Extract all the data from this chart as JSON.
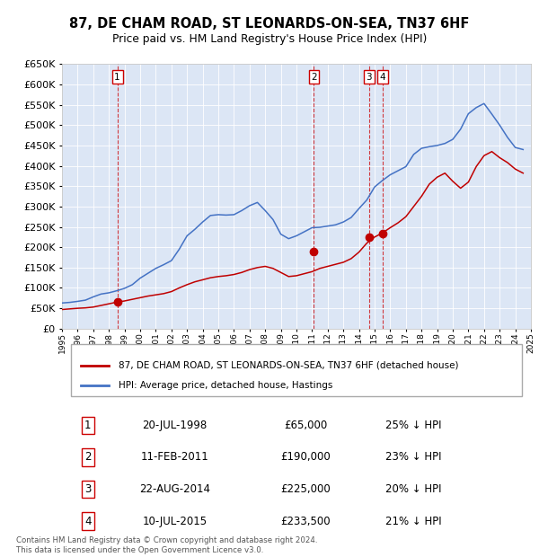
{
  "title": "87, DE CHAM ROAD, ST LEONARDS-ON-SEA, TN37 6HF",
  "subtitle": "Price paid vs. HM Land Registry's House Price Index (HPI)",
  "ylim": [
    0,
    650000
  ],
  "yticks": [
    0,
    50000,
    100000,
    150000,
    200000,
    250000,
    300000,
    350000,
    400000,
    450000,
    500000,
    550000,
    600000,
    650000
  ],
  "background_color": "#dce6f5",
  "hpi_color": "#4472c4",
  "price_color": "#c00000",
  "legend_label_price": "87, DE CHAM ROAD, ST LEONARDS-ON-SEA, TN37 6HF (detached house)",
  "legend_label_hpi": "HPI: Average price, detached house, Hastings",
  "footer": "Contains HM Land Registry data © Crown copyright and database right 2024.\nThis data is licensed under the Open Government Licence v3.0.",
  "transactions": [
    {
      "label": "1",
      "date": "20-JUL-1998",
      "price": 65000,
      "pct": "25% ↓ HPI",
      "x": 1998.54
    },
    {
      "label": "2",
      "date": "11-FEB-2011",
      "price": 190000,
      "pct": "23% ↓ HPI",
      "x": 2011.12
    },
    {
      "label": "3",
      "date": "22-AUG-2014",
      "price": 225000,
      "pct": "20% ↓ HPI",
      "x": 2014.64
    },
    {
      "label": "4",
      "date": "10-JUL-2015",
      "price": 233500,
      "pct": "21% ↓ HPI",
      "x": 2015.53
    }
  ],
  "hpi_years": [
    1995.0,
    1995.5,
    1996.0,
    1996.5,
    1997.0,
    1997.5,
    1998.0,
    1998.5,
    1999.0,
    1999.5,
    2000.0,
    2000.5,
    2001.0,
    2001.5,
    2002.0,
    2002.5,
    2003.0,
    2003.5,
    2004.0,
    2004.5,
    2005.0,
    2005.5,
    2006.0,
    2006.5,
    2007.0,
    2007.5,
    2008.0,
    2008.5,
    2009.0,
    2009.5,
    2010.0,
    2010.5,
    2011.0,
    2011.5,
    2012.0,
    2012.5,
    2013.0,
    2013.5,
    2014.0,
    2014.5,
    2015.0,
    2015.5,
    2016.0,
    2016.5,
    2017.0,
    2017.5,
    2018.0,
    2018.5,
    2019.0,
    2019.5,
    2020.0,
    2020.5,
    2021.0,
    2021.5,
    2022.0,
    2022.5,
    2023.0,
    2023.5,
    2024.0,
    2024.5
  ],
  "hpi_values": [
    63000,
    64500,
    67000,
    70000,
    78000,
    85000,
    88000,
    93000,
    99000,
    108000,
    124000,
    136000,
    148000,
    157000,
    167000,
    195000,
    228000,
    244000,
    262000,
    278000,
    280000,
    279000,
    280000,
    290000,
    302000,
    310000,
    290000,
    268000,
    232000,
    221000,
    228000,
    238000,
    248000,
    249000,
    252000,
    255000,
    262000,
    273000,
    295000,
    316000,
    348000,
    364000,
    378000,
    388000,
    398000,
    428000,
    443000,
    447000,
    450000,
    455000,
    465000,
    490000,
    528000,
    543000,
    553000,
    527000,
    500000,
    470000,
    445000,
    440000
  ],
  "price_years": [
    1995.0,
    1995.5,
    1996.0,
    1996.5,
    1997.0,
    1997.5,
    1998.0,
    1998.5,
    1999.0,
    1999.5,
    2000.0,
    2000.5,
    2001.0,
    2001.5,
    2002.0,
    2002.5,
    2003.0,
    2003.5,
    2004.0,
    2004.5,
    2005.0,
    2005.5,
    2006.0,
    2006.5,
    2007.0,
    2007.5,
    2008.0,
    2008.5,
    2009.0,
    2009.5,
    2010.0,
    2010.5,
    2011.0,
    2011.5,
    2012.0,
    2012.5,
    2013.0,
    2013.5,
    2014.0,
    2014.5,
    2015.0,
    2015.5,
    2016.0,
    2016.5,
    2017.0,
    2017.5,
    2018.0,
    2018.5,
    2019.0,
    2019.5,
    2020.0,
    2020.5,
    2021.0,
    2021.5,
    2022.0,
    2022.5,
    2023.0,
    2023.5,
    2024.0,
    2024.5
  ],
  "price_values": [
    47000,
    48500,
    50000,
    51000,
    53000,
    57000,
    61000,
    65000,
    68000,
    72000,
    76000,
    80000,
    83000,
    86000,
    91000,
    100000,
    108000,
    115000,
    120000,
    125000,
    128000,
    130000,
    133000,
    138000,
    145000,
    150000,
    153000,
    148000,
    138000,
    128000,
    130000,
    135000,
    140000,
    148000,
    153000,
    158000,
    163000,
    172000,
    188000,
    210000,
    225000,
    235000,
    248000,
    260000,
    275000,
    300000,
    325000,
    355000,
    372000,
    382000,
    362000,
    345000,
    360000,
    398000,
    425000,
    435000,
    420000,
    408000,
    392000,
    382000
  ],
  "xlim": [
    1995.0,
    2025.0
  ],
  "xtick_years": [
    1995,
    1996,
    1997,
    1998,
    1999,
    2000,
    2001,
    2002,
    2003,
    2004,
    2005,
    2006,
    2007,
    2008,
    2009,
    2010,
    2011,
    2012,
    2013,
    2014,
    2015,
    2016,
    2017,
    2018,
    2019,
    2020,
    2021,
    2022,
    2023,
    2024,
    2025
  ],
  "table_rows": [
    [
      "1",
      "20-JUL-1998",
      "£65,000",
      "25% ↓ HPI"
    ],
    [
      "2",
      "11-FEB-2011",
      "£190,000",
      "23% ↓ HPI"
    ],
    [
      "3",
      "22-AUG-2014",
      "£225,000",
      "20% ↓ HPI"
    ],
    [
      "4",
      "10-JUL-2015",
      "£233,500",
      "21% ↓ HPI"
    ]
  ]
}
